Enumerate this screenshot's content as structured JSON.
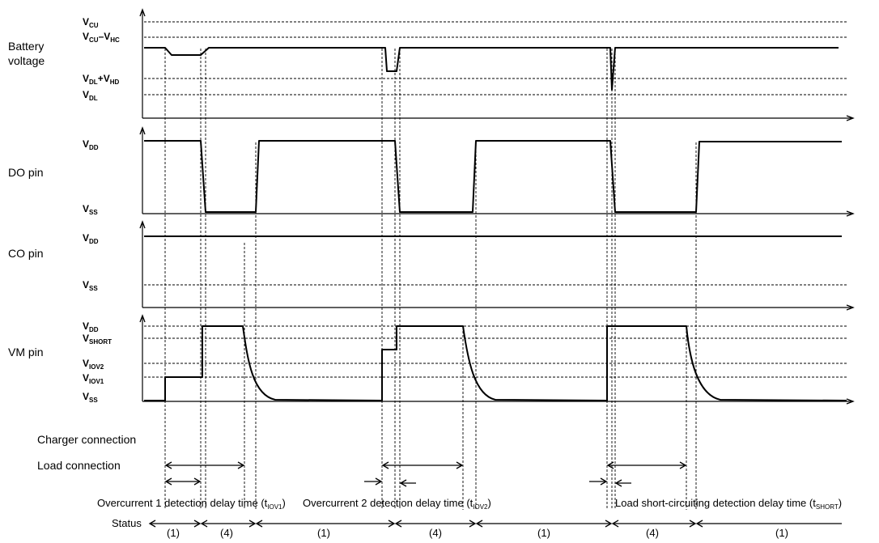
{
  "rows": {
    "battery": {
      "label_l1": "Battery",
      "label_l2": "voltage"
    },
    "do_pin": {
      "label": "DO pin"
    },
    "co_pin": {
      "label": "CO pin"
    },
    "vm_pin": {
      "label": "VM pin"
    }
  },
  "levels": {
    "vcu": {
      "base": "V",
      "sub": "CU"
    },
    "vcu_vhc": {
      "base1": "V",
      "sub1": "CU",
      "mid": "–V",
      "sub2": "HC"
    },
    "vdl_vhd": {
      "base1": "V",
      "sub1": "DL",
      "mid": "+V",
      "sub2": "HD"
    },
    "vdl": {
      "base": "V",
      "sub": "DL"
    },
    "vdd": {
      "base": "V",
      "sub": "DD"
    },
    "vss": {
      "base": "V",
      "sub": "SS"
    },
    "vshort": {
      "base": "V",
      "sub": "SHORT"
    },
    "viov2": {
      "base": "V",
      "sub": "IOV2"
    },
    "viov1": {
      "base": "V",
      "sub": "IOV1"
    }
  },
  "connections": {
    "charger": "Charger connection",
    "load": "Load connection"
  },
  "delays": {
    "iov1": {
      "text": "Overcurrent 1 detection delay time (t",
      "sub": "IOV1",
      "close": ")"
    },
    "iov2": {
      "text": "Overcurrent 2 detection delay time (t",
      "sub": "IOV2",
      "close": ")"
    },
    "short": {
      "text": "Load short-circuiting detection delay time (t",
      "sub": "SHORT",
      "close": ")"
    }
  },
  "status": {
    "label": "Status",
    "segments": [
      "(1)",
      "(4)",
      "(1)",
      "(4)",
      "(1)",
      "(4)",
      "(1)"
    ]
  }
}
